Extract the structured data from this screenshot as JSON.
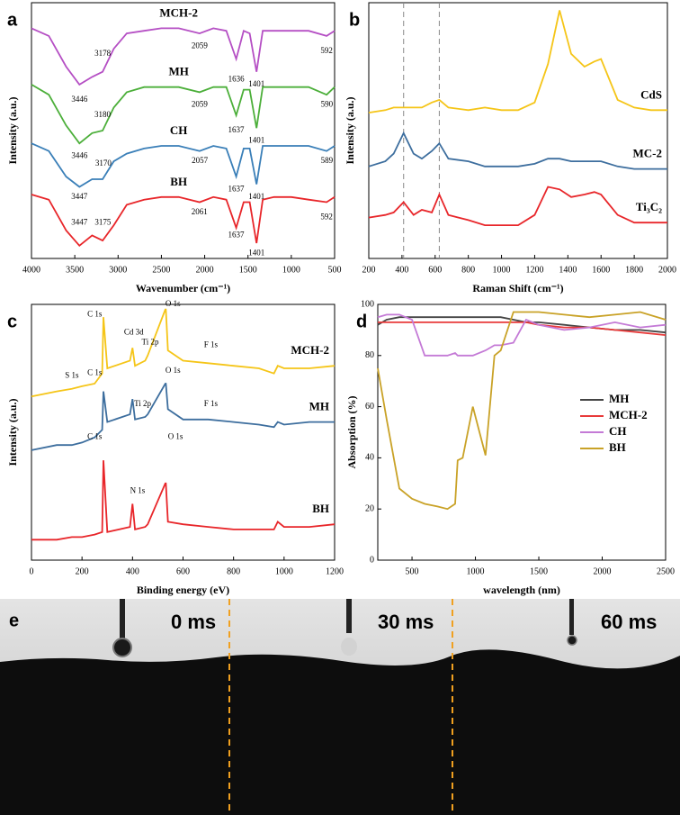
{
  "chart_data": [
    {
      "type": "line",
      "label": "a",
      "xlabel": "Wavenumber (cm⁻¹)",
      "ylabel": "Intensity (a.u.)",
      "legend": "inline",
      "xlim": [
        4000,
        500
      ],
      "xticks": [
        4000,
        3500,
        3000,
        2500,
        2000,
        1500,
        1000,
        500
      ],
      "ylim": [
        0,
        100
      ],
      "x": [
        4000,
        3800,
        3600,
        3446,
        3300,
        3178,
        3050,
        2900,
        2700,
        2500,
        2300,
        2059,
        1900,
        1750,
        1636,
        1550,
        1480,
        1401,
        1330,
        1200,
        1000,
        800,
        592,
        500
      ],
      "series": [
        {
          "name": "MCH-2",
          "color": "#b54fc4",
          "values": [
            90,
            87,
            75,
            68,
            71,
            73,
            82,
            88,
            89,
            90,
            90,
            88,
            90,
            89,
            78,
            89,
            88,
            73,
            89,
            89,
            89,
            89,
            87,
            89
          ]
        },
        {
          "name": "MH",
          "color": "#4caf3a",
          "values": [
            68,
            64,
            52,
            45,
            49,
            50,
            59,
            65,
            67,
            67,
            67,
            65,
            67,
            67,
            56,
            66,
            66,
            51,
            67,
            67,
            67,
            67,
            64,
            67
          ]
        },
        {
          "name": "CH",
          "color": "#3a7fb8",
          "values": [
            45,
            42,
            32,
            28,
            31,
            31,
            38,
            41,
            43,
            44,
            44,
            42,
            44,
            43,
            32,
            43,
            43,
            29,
            44,
            44,
            44,
            44,
            42,
            44
          ]
        },
        {
          "name": "BH",
          "color": "#e8262a",
          "values": [
            25,
            23,
            11,
            5,
            9,
            7,
            13,
            21,
            23,
            24,
            24,
            22,
            24,
            23,
            12,
            22,
            22,
            6,
            23,
            24,
            24,
            23,
            22,
            24
          ]
        }
      ],
      "annotations": [
        {
          "text": "3446",
          "x": 3446,
          "y": 62
        },
        {
          "text": "3178",
          "x": 3178,
          "y": 80
        },
        {
          "text": "2059",
          "x": 2059,
          "y": 83
        },
        {
          "text": "1636",
          "x": 1636,
          "y": 70
        },
        {
          "text": "1401",
          "x": 1401,
          "y": 68
        },
        {
          "text": "592",
          "x": 592,
          "y": 81
        },
        {
          "text": "3446",
          "x": 3446,
          "y": 40
        },
        {
          "text": "3180",
          "x": 3180,
          "y": 56
        },
        {
          "text": "2059",
          "x": 2059,
          "y": 60
        },
        {
          "text": "1637",
          "x": 1637,
          "y": 50
        },
        {
          "text": "1401",
          "x": 1401,
          "y": 46
        },
        {
          "text": "590",
          "x": 590,
          "y": 60
        },
        {
          "text": "3447",
          "x": 3447,
          "y": 24
        },
        {
          "text": "3170",
          "x": 3170,
          "y": 37
        },
        {
          "text": "2057",
          "x": 2057,
          "y": 38
        },
        {
          "text": "1637",
          "x": 1637,
          "y": 27
        },
        {
          "text": "1401",
          "x": 1401,
          "y": 24
        },
        {
          "text": "589",
          "x": 589,
          "y": 38
        },
        {
          "text": "3447",
          "x": 3447,
          "y": 14
        },
        {
          "text": "3175",
          "x": 3175,
          "y": 14
        },
        {
          "text": "2061",
          "x": 2061,
          "y": 18
        },
        {
          "text": "1637",
          "x": 1637,
          "y": 9
        },
        {
          "text": "1401",
          "x": 1401,
          "y": 2
        },
        {
          "text": "592",
          "x": 592,
          "y": 16
        }
      ]
    },
    {
      "type": "line",
      "label": "b",
      "xlabel": "Raman Shift (cm⁻¹)",
      "ylabel": "Intensity (a.u.)",
      "legend": "inline",
      "xlim": [
        200,
        2000
      ],
      "xticks": [
        200,
        400,
        600,
        800,
        1000,
        1200,
        1400,
        1600,
        1800,
        2000
      ],
      "ylim": [
        0,
        100
      ],
      "vlines": [
        410,
        625
      ],
      "x": [
        200,
        300,
        350,
        410,
        470,
        520,
        580,
        625,
        680,
        800,
        900,
        1000,
        1100,
        1200,
        1280,
        1350,
        1420,
        1500,
        1560,
        1600,
        1700,
        1800,
        1900,
        2000
      ],
      "series": [
        {
          "name": "CdS",
          "color": "#f5c518",
          "values": [
            57,
            58,
            59,
            59,
            59,
            59,
            61,
            62,
            59,
            58,
            59,
            58,
            58,
            61,
            76,
            97,
            80,
            75,
            77,
            78,
            62,
            59,
            58,
            58
          ]
        },
        {
          "name": "MC-2",
          "color": "#3d6e9e",
          "values": [
            36,
            38,
            41,
            49,
            41,
            39,
            42,
            45,
            39,
            38,
            36,
            36,
            36,
            37,
            39,
            39,
            38,
            38,
            38,
            38,
            36,
            35,
            35,
            35
          ]
        },
        {
          "name": "Ti₃C₂",
          "color": "#e8262a",
          "values": [
            16,
            17,
            18,
            22,
            17,
            19,
            18,
            25,
            17,
            15,
            13,
            13,
            13,
            17,
            28,
            27,
            24,
            25,
            26,
            25,
            17,
            14,
            14,
            14
          ]
        }
      ]
    },
    {
      "type": "line",
      "label": "c",
      "xlabel": "Binding energy (eV)",
      "ylabel": "Intensity (a.u.)",
      "legend": "inline",
      "xlim": [
        0,
        1200
      ],
      "xticks": [
        0,
        200,
        400,
        600,
        800,
        1000,
        1200
      ],
      "ylim": [
        0,
        100
      ],
      "x": [
        0,
        100,
        160,
        200,
        250,
        280,
        285,
        300,
        390,
        400,
        410,
        450,
        460,
        530,
        532,
        540,
        600,
        700,
        800,
        900,
        960,
        975,
        1000,
        1100,
        1200
      ],
      "series": [
        {
          "name": "MCH-2",
          "color": "#f5c518",
          "values": [
            64,
            66,
            67,
            68,
            69,
            73,
            95,
            75,
            78,
            83,
            76,
            78,
            80,
            98,
            98,
            82,
            78,
            77,
            76,
            75,
            73,
            76,
            75,
            75,
            76
          ]
        },
        {
          "name": "MH",
          "color": "#3d6e9e",
          "values": [
            43,
            45,
            45,
            46,
            48,
            51,
            66,
            54,
            57,
            63,
            55,
            56,
            57,
            69,
            69,
            59,
            55,
            55,
            54,
            53,
            52,
            54,
            53,
            54,
            54
          ]
        },
        {
          "name": "BH",
          "color": "#e8262a",
          "values": [
            8,
            8,
            9,
            9,
            10,
            11,
            39,
            11,
            13,
            22,
            12,
            13,
            14,
            30,
            30,
            15,
            14,
            13,
            12,
            12,
            12,
            15,
            13,
            13,
            14
          ]
        }
      ],
      "annotations": [
        {
          "text": "S 1s",
          "x": 160,
          "y": 72
        },
        {
          "text": "C 1s",
          "x": 250,
          "y": 96
        },
        {
          "text": "Cd 3d",
          "x": 405,
          "y": 89
        },
        {
          "text": "Ti 2p",
          "x": 470,
          "y": 85
        },
        {
          "text": "O 1s",
          "x": 560,
          "y": 100
        },
        {
          "text": "F 1s",
          "x": 710,
          "y": 84
        },
        {
          "text": "C 1s",
          "x": 250,
          "y": 73
        },
        {
          "text": "Ti 2p",
          "x": 440,
          "y": 61
        },
        {
          "text": "O 1s",
          "x": 560,
          "y": 74
        },
        {
          "text": "F 1s",
          "x": 710,
          "y": 61
        },
        {
          "text": "C 1s",
          "x": 250,
          "y": 48
        },
        {
          "text": "N 1s",
          "x": 420,
          "y": 27
        },
        {
          "text": "O 1s",
          "x": 570,
          "y": 48
        }
      ]
    },
    {
      "type": "line",
      "label": "d",
      "xlabel": "wavelength (nm)",
      "ylabel": "Absorption (%)",
      "legend": "center right",
      "xlim": [
        230,
        2500
      ],
      "xticks": [
        500,
        1000,
        1500,
        2000,
        2500
      ],
      "ylim": [
        0,
        100
      ],
      "yticks": [
        0,
        20,
        40,
        60,
        80,
        100
      ],
      "x": [
        230,
        300,
        400,
        500,
        600,
        700,
        780,
        840,
        860,
        900,
        980,
        1080,
        1150,
        1200,
        1300,
        1400,
        1500,
        1700,
        1900,
        2100,
        2300,
        2500
      ],
      "series": [
        {
          "name": "MH",
          "color": "#444444",
          "values": [
            92,
            94,
            95,
            95,
            95,
            95,
            95,
            95,
            95,
            95,
            95,
            95,
            95,
            95,
            94,
            93,
            93,
            92,
            91,
            90,
            90,
            89
          ]
        },
        {
          "name": "MCH-2",
          "color": "#e83a3a",
          "values": [
            93,
            93,
            93,
            93,
            93,
            93,
            93,
            93,
            93,
            93,
            93,
            93,
            93,
            93,
            93,
            93,
            92,
            91,
            91,
            90,
            89,
            88
          ]
        },
        {
          "name": "CH",
          "color": "#c47ad6",
          "values": [
            95,
            96,
            96,
            94,
            80,
            80,
            80,
            81,
            80,
            80,
            80,
            82,
            84,
            84,
            85,
            94,
            92,
            90,
            91,
            93,
            91,
            92
          ]
        },
        {
          "name": "BH",
          "color": "#c9a227",
          "values": [
            75,
            55,
            28,
            24,
            22,
            21,
            20,
            22,
            39,
            40,
            60,
            41,
            80,
            82,
            97,
            97,
            97,
            96,
            95,
            96,
            97,
            94
          ]
        }
      ]
    }
  ],
  "panel_e": {
    "label": "e",
    "frames": [
      "0 ms",
      "30 ms",
      "60 ms"
    ]
  }
}
